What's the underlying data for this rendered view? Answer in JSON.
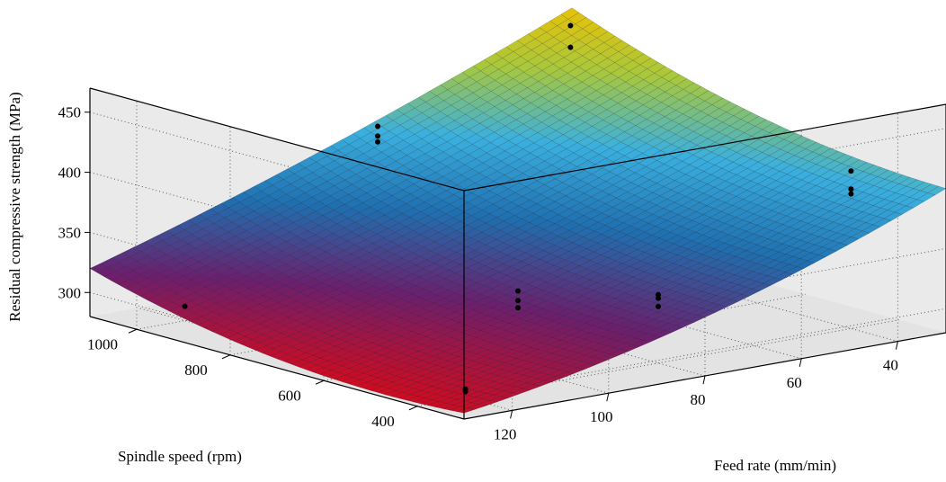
{
  "chart_data": {
    "type": "surface",
    "title": "",
    "axes": {
      "x": {
        "label": "Feed rate (mm/min)",
        "range": [
          30,
          130
        ],
        "ticks": [
          "40",
          "60",
          "80",
          "100",
          "120"
        ]
      },
      "y": {
        "label": "Spindle speed (rpm)",
        "range": [
          300,
          1100
        ],
        "ticks": [
          "400",
          "600",
          "800",
          "1000"
        ]
      },
      "z": {
        "label": "Residual compressive strength (MPa)",
        "range": [
          280,
          470
        ],
        "ticks": [
          "300",
          "350",
          "400",
          "450"
        ]
      }
    },
    "grid": true,
    "colormap": [
      "#d70a1c",
      "#6b1f6e",
      "#1f6fb0",
      "#3ab0e0",
      "#a8c83c",
      "#f2c000"
    ],
    "surface_model": {
      "description_free": true,
      "corners": [
        {
          "feed": 130,
          "speed": 300,
          "stress": 285
        },
        {
          "feed": 130,
          "speed": 1100,
          "stress": 320
        },
        {
          "feed": 30,
          "speed": 300,
          "stress": 400
        },
        {
          "feed": 30,
          "speed": 1100,
          "stress": 465
        }
      ]
    },
    "observed_points": [
      {
        "feed": 40,
        "speed": 400,
        "stress": 411
      },
      {
        "feed": 40,
        "speed": 400,
        "stress": 396
      },
      {
        "feed": 40,
        "speed": 400,
        "stress": 392
      },
      {
        "feed": 80,
        "speed": 400,
        "stress": 337
      },
      {
        "feed": 80,
        "speed": 400,
        "stress": 334
      },
      {
        "feed": 80,
        "speed": 400,
        "stress": 327
      },
      {
        "feed": 120,
        "speed": 400,
        "stress": 287
      },
      {
        "feed": 120,
        "speed": 400,
        "stress": 285
      },
      {
        "feed": 40,
        "speed": 1000,
        "stress": 468
      },
      {
        "feed": 40,
        "speed": 1000,
        "stress": 450
      },
      {
        "feed": 80,
        "speed": 1000,
        "stress": 413
      },
      {
        "feed": 80,
        "speed": 1000,
        "stress": 405
      },
      {
        "feed": 80,
        "speed": 1000,
        "stress": 400
      },
      {
        "feed": 120,
        "speed": 1000,
        "stress": 292
      },
      {
        "feed": 80,
        "speed": 700,
        "stress": 308
      },
      {
        "feed": 80,
        "speed": 700,
        "stress": 300
      },
      {
        "feed": 80,
        "speed": 700,
        "stress": 294
      }
    ]
  }
}
